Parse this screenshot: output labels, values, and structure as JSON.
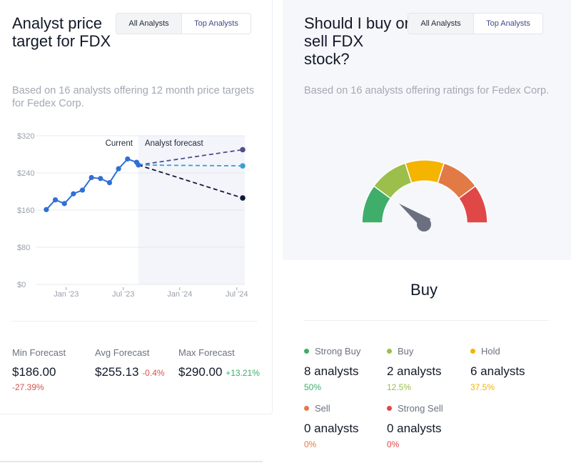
{
  "target_section": {
    "title": "Analyst price target for FDX",
    "toggle": {
      "all": "All Analysts",
      "top": "Top Analysts"
    },
    "subtitle": "Based on 16 analysts offering 12 month price targets for Fedex Corp.",
    "forecasts": [
      {
        "label": "Min Forecast",
        "value": "$186.00",
        "change": "-27.39%",
        "trend": "neg"
      },
      {
        "label": "Avg Forecast",
        "value": "$255.13",
        "change": "-0.4%",
        "trend": "neg"
      },
      {
        "label": "Max Forecast",
        "value": "$290.00",
        "change": "+13.21%",
        "trend": "pos"
      }
    ]
  },
  "chart_data": {
    "type": "line",
    "y_ticks": [
      "$320",
      "$240",
      "$160",
      "$80",
      "$0"
    ],
    "x_ticks": [
      "Jan '23",
      "Jul '23",
      "Jan '24",
      "Jul '24"
    ],
    "ylim": [
      0,
      320
    ],
    "annotations": {
      "current": "Current",
      "forecast": "Analyst forecast"
    },
    "history": [
      {
        "month": 0,
        "value": 161
      },
      {
        "month": 1,
        "value": 182
      },
      {
        "month": 2,
        "value": 174
      },
      {
        "month": 3,
        "value": 195
      },
      {
        "month": 4,
        "value": 203
      },
      {
        "month": 5,
        "value": 230
      },
      {
        "month": 6,
        "value": 228
      },
      {
        "month": 7,
        "value": 219
      },
      {
        "month": 8,
        "value": 249
      },
      {
        "month": 9,
        "value": 270
      },
      {
        "month": 10,
        "value": 263
      },
      {
        "month": 10.2,
        "value": 257
      }
    ],
    "forecast_series": [
      {
        "name": "Max",
        "value": 290,
        "color": "#4b4f8c"
      },
      {
        "name": "Avg",
        "value": 255.13,
        "color": "#3aa0d0"
      },
      {
        "name": "Min",
        "value": 186,
        "color": "#0f1a3a"
      }
    ],
    "colors": {
      "history": "#2f6fd6"
    }
  },
  "rating_section": {
    "title": "Should I buy or sell FDX stock?",
    "toggle": {
      "all": "All Analysts",
      "top": "Top Analysts"
    },
    "subtitle": "Based on 16 analysts offering ratings for Fedex Corp.",
    "verdict": "Buy",
    "ratings": [
      {
        "label": "Strong Buy",
        "count": "8 analysts",
        "pct": "50%",
        "color": "#3fae6a"
      },
      {
        "label": "Buy",
        "count": "2 analysts",
        "pct": "12.5%",
        "color": "#9bbf4a"
      },
      {
        "label": "Hold",
        "count": "6 analysts",
        "pct": "37.5%",
        "color": "#f4b400"
      },
      {
        "label": "Sell",
        "count": "0 analysts",
        "pct": "0%",
        "color": "#e27a46"
      },
      {
        "label": "Strong Sell",
        "count": "0 analysts",
        "pct": "0%",
        "color": "#e04848"
      }
    ]
  }
}
